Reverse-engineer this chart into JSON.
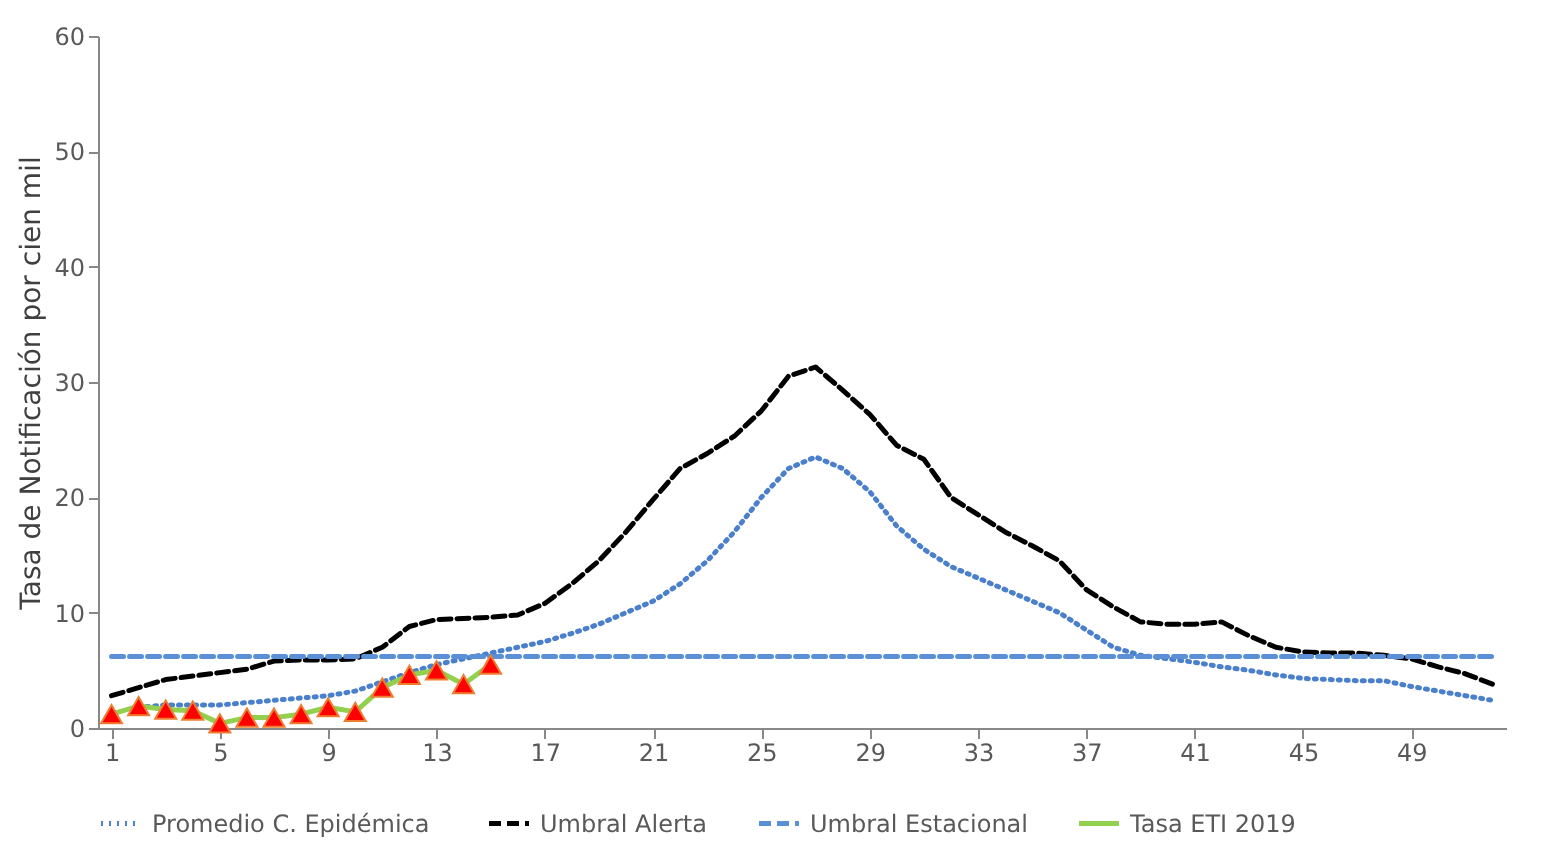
{
  "chart_data": {
    "type": "line",
    "ylabel": "Tasa de Notificación por cien mil",
    "x": [
      1,
      2,
      3,
      4,
      5,
      6,
      7,
      8,
      9,
      10,
      11,
      12,
      13,
      14,
      15,
      16,
      17,
      18,
      19,
      20,
      21,
      22,
      23,
      24,
      25,
      26,
      27,
      28,
      29,
      30,
      31,
      32,
      33,
      34,
      35,
      36,
      37,
      38,
      39,
      40,
      41,
      42,
      43,
      44,
      45,
      46,
      47,
      48,
      49,
      50,
      51,
      52
    ],
    "xlim": [
      0.5,
      52.5
    ],
    "xticks": [
      1,
      5,
      9,
      13,
      17,
      21,
      25,
      29,
      33,
      37,
      41,
      45,
      49
    ],
    "ylim": [
      0,
      60
    ],
    "yticks": [
      0,
      10,
      20,
      30,
      40,
      50,
      60
    ],
    "grid": false,
    "legend": "bottom",
    "series": [
      {
        "name": "Promedio  C. Epidémica",
        "color": "#4a7fcb",
        "line_style": "dotted",
        "values": [
          null,
          1.8,
          2.0,
          2.0,
          2.0,
          2.2,
          2.4,
          2.6,
          2.8,
          3.2,
          4.0,
          4.8,
          5.5,
          6.0,
          6.5,
          7.0,
          7.5,
          8.2,
          9.0,
          10.0,
          11.0,
          12.5,
          14.5,
          17,
          20,
          22.5,
          23.5,
          22.5,
          20.5,
          17.5,
          15.5,
          14,
          13,
          12,
          11,
          10,
          8.5,
          7.0,
          6.3,
          6.0,
          5.7,
          5.3,
          5.0,
          4.6,
          4.3,
          4.2,
          4.1,
          4.1,
          3.6,
          3.2,
          2.8,
          2.4
        ]
      },
      {
        "name": "Umbral Alerta",
        "color": "#000000",
        "line_style": "dashed",
        "values": [
          2.8,
          3.5,
          4.2,
          4.5,
          4.8,
          5.1,
          5.8,
          5.9,
          5.9,
          6.0,
          7.0,
          8.8,
          9.4,
          9.5,
          9.6,
          9.8,
          10.8,
          12.5,
          14.5,
          17,
          19.8,
          22.5,
          23.8,
          25.3,
          27.5,
          30.5,
          31.3,
          29.3,
          27.2,
          24.5,
          23.3,
          20,
          18.5,
          17,
          15.8,
          14.5,
          12,
          10.5,
          9.2,
          9.0,
          9.0,
          9.2,
          8.0,
          7.0,
          6.6,
          6.5,
          6.5,
          6.3,
          6.0,
          5.3,
          4.7,
          3.8
        ]
      },
      {
        "name": "Umbral Estacional",
        "color": "#5b8fd6",
        "line_style": "dashed",
        "values": [
          6.2,
          6.2,
          6.2,
          6.2,
          6.2,
          6.2,
          6.2,
          6.2,
          6.2,
          6.2,
          6.2,
          6.2,
          6.2,
          6.2,
          6.2,
          6.2,
          6.2,
          6.2,
          6.2,
          6.2,
          6.2,
          6.2,
          6.2,
          6.2,
          6.2,
          6.2,
          6.2,
          6.2,
          6.2,
          6.2,
          6.2,
          6.2,
          6.2,
          6.2,
          6.2,
          6.2,
          6.2,
          6.2,
          6.2,
          6.2,
          6.2,
          6.2,
          6.2,
          6.2,
          6.2,
          6.2,
          6.2,
          6.2,
          6.2,
          6.2,
          6.2,
          6.2
        ]
      },
      {
        "name": "Tasa ETI  2019",
        "color": "#92d050",
        "line_style": "solid",
        "marker": "triangle",
        "colors": [
          "#ff0000",
          "#ff0000",
          "#ff0000",
          "#ff0000",
          "#ff0000",
          "#ff0000",
          "#ff0000",
          "#ff0000",
          "#ff0000",
          "#ff0000",
          "#ff0000",
          "#ff0000",
          "#ff0000",
          "#ff0000",
          "#ff0000"
        ],
        "x": [
          1,
          2,
          3,
          4,
          5,
          6,
          7,
          8,
          9,
          10,
          11,
          12,
          13,
          14,
          15
        ],
        "values": [
          1.2,
          1.9,
          1.6,
          1.5,
          0.4,
          0.9,
          0.9,
          1.2,
          1.8,
          1.4,
          3.5,
          4.6,
          5.0,
          3.8,
          5.5
        ]
      }
    ]
  }
}
